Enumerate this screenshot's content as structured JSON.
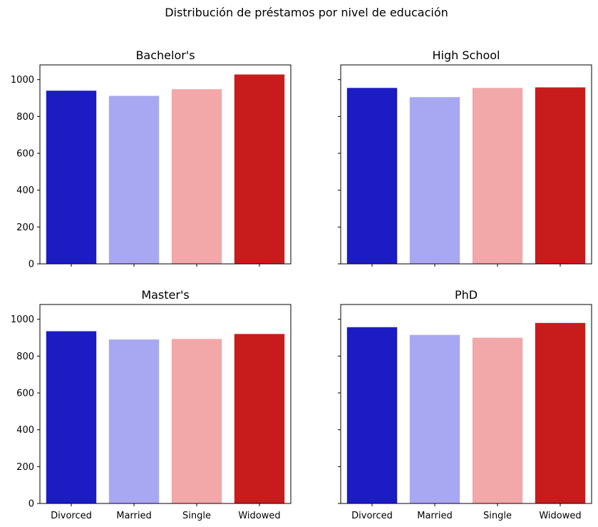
{
  "figure": {
    "title": "Distribución de préstamos por nivel de educación"
  },
  "chart_data": [
    {
      "type": "bar",
      "title": "Bachelor's",
      "categories": [
        "Divorced",
        "Married",
        "Single",
        "Widowed"
      ],
      "values": [
        940,
        912,
        948,
        1028
      ],
      "xlabel": "",
      "ylabel": "",
      "ylim": [
        0,
        1080
      ],
      "yticks": [
        "0",
        "200",
        "400",
        "600",
        "800",
        "1000"
      ],
      "show_xtick_labels": false,
      "show_ytick_labels": true,
      "colors": [
        "#1c1cc4",
        "#a8a8f2",
        "#f2a8a8",
        "#c81c1c"
      ]
    },
    {
      "type": "bar",
      "title": "High School",
      "categories": [
        "Divorced",
        "Married",
        "Single",
        "Widowed"
      ],
      "values": [
        955,
        905,
        955,
        958
      ],
      "xlabel": "",
      "ylabel": "",
      "ylim": [
        0,
        1080
      ],
      "yticks": [
        "0",
        "200",
        "400",
        "600",
        "800",
        "1000"
      ],
      "show_xtick_labels": false,
      "show_ytick_labels": false,
      "colors": [
        "#1c1cc4",
        "#a8a8f2",
        "#f2a8a8",
        "#c81c1c"
      ]
    },
    {
      "type": "bar",
      "title": "Master's",
      "categories": [
        "Divorced",
        "Married",
        "Single",
        "Widowed"
      ],
      "values": [
        935,
        890,
        893,
        920
      ],
      "xlabel": "",
      "ylabel": "",
      "ylim": [
        0,
        1080
      ],
      "yticks": [
        "0",
        "200",
        "400",
        "600",
        "800",
        "1000"
      ],
      "show_xtick_labels": true,
      "show_ytick_labels": true,
      "colors": [
        "#1c1cc4",
        "#a8a8f2",
        "#f2a8a8",
        "#c81c1c"
      ]
    },
    {
      "type": "bar",
      "title": "PhD",
      "categories": [
        "Divorced",
        "Married",
        "Single",
        "Widowed"
      ],
      "values": [
        957,
        915,
        900,
        980
      ],
      "xlabel": "",
      "ylabel": "",
      "ylim": [
        0,
        1080
      ],
      "yticks": [
        "0",
        "200",
        "400",
        "600",
        "800",
        "1000"
      ],
      "show_xtick_labels": true,
      "show_ytick_labels": false,
      "colors": [
        "#1c1cc4",
        "#a8a8f2",
        "#f2a8a8",
        "#c81c1c"
      ]
    }
  ]
}
